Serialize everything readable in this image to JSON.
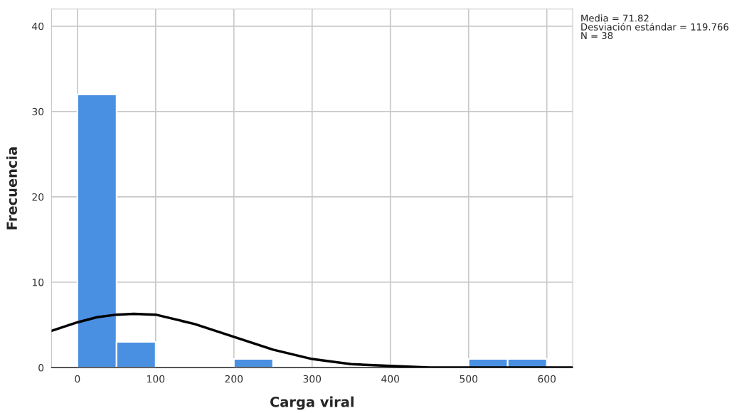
{
  "chart_data": {
    "type": "histogram",
    "xlabel": "Carga viral",
    "ylabel": "Frecuencia",
    "bins": [
      0,
      50,
      100,
      150,
      200,
      250,
      300,
      350,
      400,
      450,
      500,
      550,
      600
    ],
    "values": [
      32,
      3,
      0,
      0,
      1,
      0,
      0,
      0,
      0,
      0,
      1,
      1
    ],
    "color": "#4a90e2",
    "series": [
      {
        "type": "line",
        "color": "#000000",
        "x": [
          -33,
          0,
          25,
          50,
          72,
          100,
          150,
          200,
          250,
          300,
          350,
          400,
          450,
          500,
          550,
          633
        ],
        "values": [
          4.3,
          5.3,
          5.9,
          6.2,
          6.3,
          6.2,
          5.1,
          3.6,
          2.1,
          1.0,
          0.4,
          0.2,
          0,
          0,
          0,
          0
        ]
      }
    ],
    "xlim": [
      -33,
      633
    ],
    "ylim": [
      0,
      42
    ],
    "xticks": [
      0,
      100,
      200,
      300,
      400,
      500,
      600
    ],
    "yticks": [
      0,
      10,
      20,
      30,
      40
    ],
    "grid": true,
    "annotations": [
      "Media = 71.82",
      "Desviación estándar = 119.766",
      "N = 38"
    ]
  }
}
